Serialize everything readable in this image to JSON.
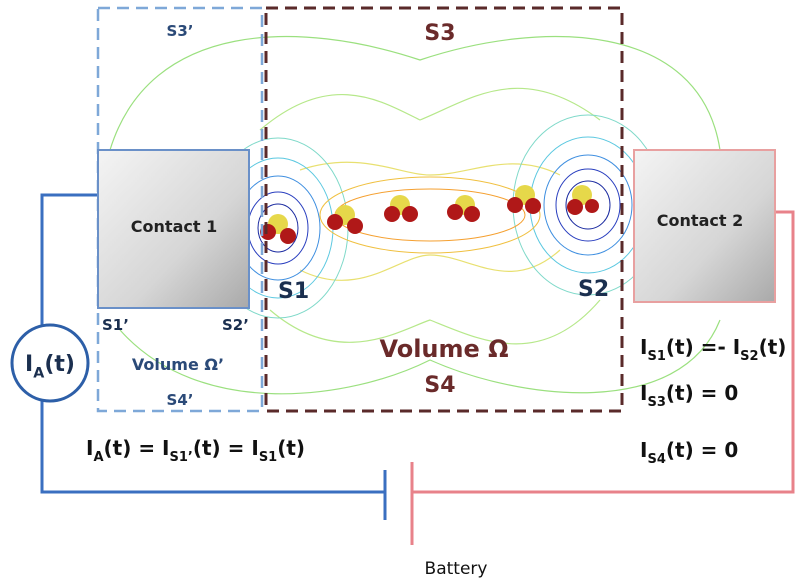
{
  "labels": {
    "s3_prime": "S3’",
    "s3": "S3",
    "contact1": "Contact 1",
    "contact2": "Contact 2",
    "s1": "S1",
    "s2": "S2",
    "s1_prime": "S1’",
    "s2_prime": "S2’",
    "volume_prime": "Volume  Ω’",
    "volume": "Volume  Ω",
    "s4_prime": "S4’",
    "s4": "S4",
    "battery": "Battery"
  },
  "current_source": [
    {
      "text": "I"
    },
    {
      "text": "A",
      "sub": true
    },
    {
      "text": "(t)"
    }
  ],
  "equations": {
    "left": [
      {
        "text": "I"
      },
      {
        "text": "A",
        "sub": true
      },
      {
        "text": "(t) = I"
      },
      {
        "text": "S1’",
        "sub": true
      },
      {
        "text": "(t) = I"
      },
      {
        "text": "S1",
        "sub": true
      },
      {
        "text": "(t)"
      }
    ],
    "right": [
      [
        {
          "text": "I"
        },
        {
          "text": "S1",
          "sub": true
        },
        {
          "text": "(t) =- I"
        },
        {
          "text": "S2",
          "sub": true
        },
        {
          "text": "(t)"
        }
      ],
      [
        {
          "text": "I"
        },
        {
          "text": "S3",
          "sub": true
        },
        {
          "text": "(t) = 0"
        }
      ],
      [
        {
          "text": "I"
        },
        {
          "text": "S4",
          "sub": true
        },
        {
          "text": "(t) = 0"
        }
      ]
    ]
  }
}
